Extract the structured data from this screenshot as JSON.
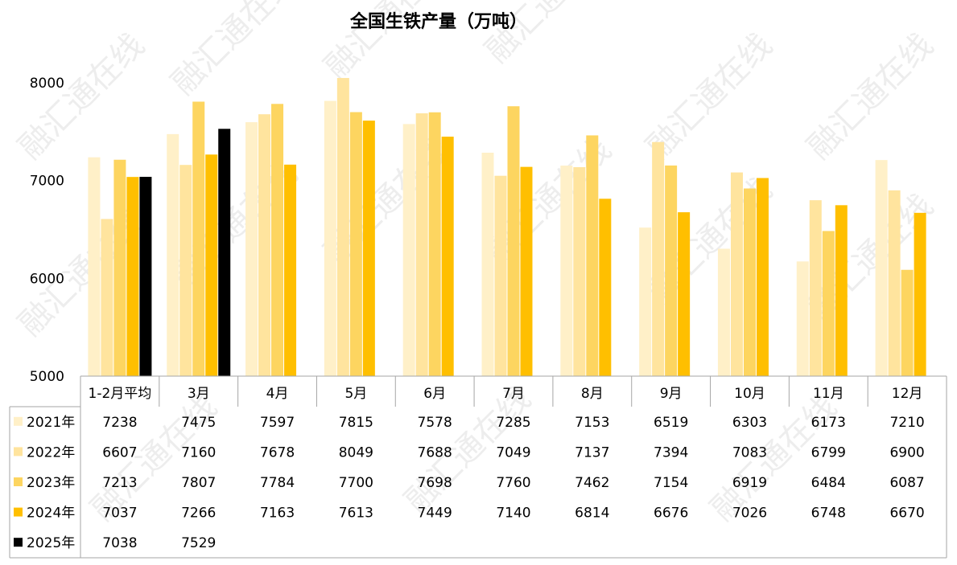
{
  "chart_data": {
    "type": "bar",
    "title": "全国生铁产量（万吨）",
    "watermark": "融汇通在线",
    "ylim": [
      5000,
      8000
    ],
    "yticks": [
      "5000",
      "6000",
      "7000",
      "8000"
    ],
    "categories": [
      "1-2月平均",
      "3月",
      "4月",
      "5月",
      "6月",
      "7月",
      "8月",
      "9月",
      "10月",
      "11月",
      "12月"
    ],
    "series": [
      {
        "name": "2021年",
        "color": "#FFF0C8",
        "values": [
          7238,
          7475,
          7597,
          7815,
          7578,
          7285,
          7153,
          6519,
          6303,
          6173,
          7210
        ]
      },
      {
        "name": "2022年",
        "color": "#FFE49E",
        "values": [
          6607,
          7160,
          7678,
          8049,
          7688,
          7049,
          7137,
          7394,
          7083,
          6799,
          6900
        ]
      },
      {
        "name": "2023年",
        "color": "#FDD560",
        "values": [
          7213,
          7807,
          7784,
          7700,
          7698,
          7760,
          7462,
          7154,
          6919,
          6484,
          6087
        ]
      },
      {
        "name": "2024年",
        "color": "#FFBF00",
        "values": [
          7037,
          7266,
          7163,
          7613,
          7449,
          7140,
          6814,
          6676,
          7026,
          6748,
          6670
        ]
      },
      {
        "name": "2025年",
        "color": "#000000",
        "values": [
          7038,
          7529,
          null,
          null,
          null,
          null,
          null,
          null,
          null,
          null,
          null
        ]
      }
    ],
    "grid": false,
    "legend": "data-table-left"
  }
}
